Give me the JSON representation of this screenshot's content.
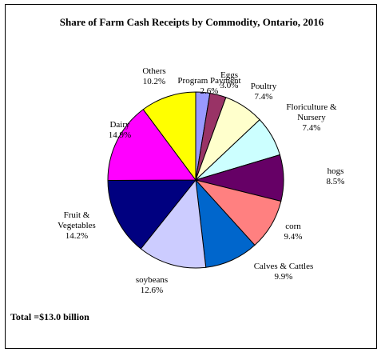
{
  "chart_data": {
    "type": "pie",
    "title": "Share of Farm Cash Receipts by Commodity, Ontario, 2016",
    "annotation": "Total =$13.0 billion",
    "categories": [
      "Program Payment",
      "Eggs",
      "Poultry",
      "Floriculture & Nursery",
      "hogs",
      "corn",
      "Calves & Cattles",
      "soybeans",
      "Fruit & Vegetables",
      "Dairy",
      "Others"
    ],
    "values": [
      2.6,
      3.0,
      7.4,
      7.4,
      8.5,
      9.4,
      9.9,
      12.6,
      14.2,
      14.9,
      10.2
    ],
    "value_labels": [
      "2.6%",
      "3.0%",
      "7.4%",
      "7.4%",
      "8.5%",
      "9.4%",
      "9.9%",
      "12.6%",
      "14.2%",
      "14.9%",
      "10.2%"
    ],
    "colors": [
      "#9999ff",
      "#993366",
      "#ffffcc",
      "#ccffff",
      "#660066",
      "#ff8080",
      "#0066cc",
      "#ccccff",
      "#000080",
      "#ff00ff",
      "#ffff00"
    ]
  }
}
